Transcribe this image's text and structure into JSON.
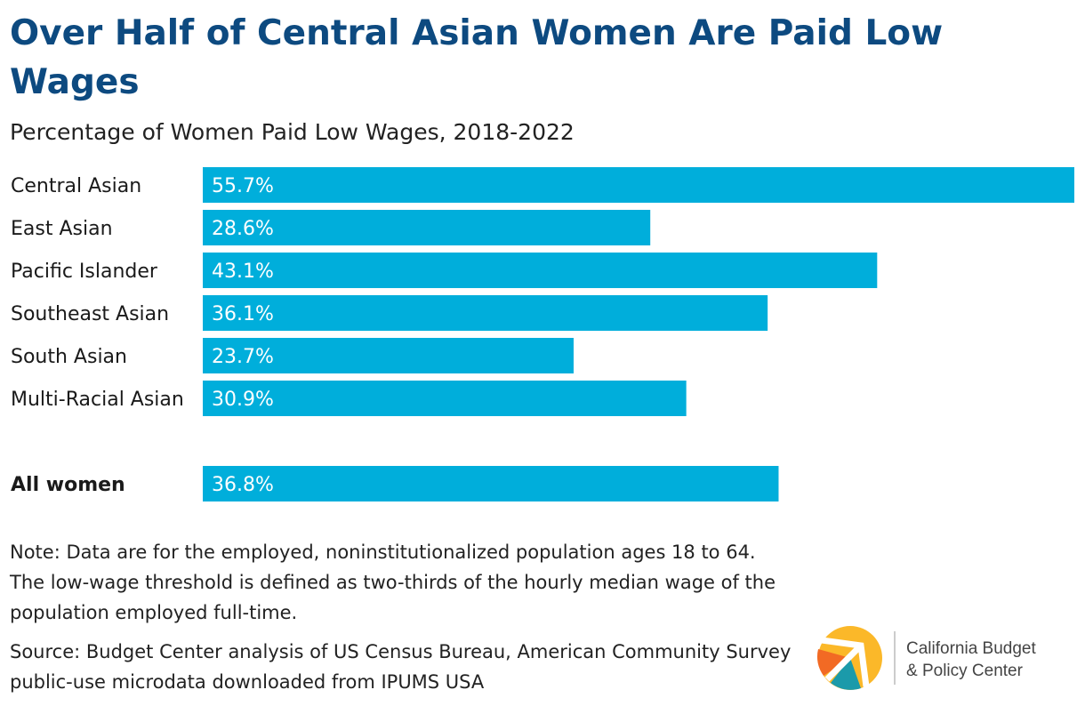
{
  "title": "Over Half of Central Asian Women Are Paid Low Wages",
  "subtitle": "Percentage of Women Paid Low Wages, 2018-2022",
  "chart_data": {
    "type": "bar",
    "orientation": "horizontal",
    "title": "Over Half of Central Asian Women Are Paid Low Wages",
    "subtitle": "Percentage of Women Paid Low Wages, 2018-2022",
    "categories": [
      "Central Asian",
      "East Asian",
      "Pacific Islander",
      "Southeast Asian",
      "South Asian",
      "Multi-Racial Asian",
      "All women"
    ],
    "values": [
      55.7,
      28.6,
      43.1,
      36.1,
      23.7,
      30.9,
      36.8
    ],
    "labels": [
      "55.7%",
      "28.6%",
      "43.1%",
      "36.1%",
      "23.7%",
      "30.9%",
      "36.8%"
    ],
    "bold_categories": [
      "All women"
    ],
    "xlim": [
      0,
      55.7
    ],
    "grid": false,
    "bar_color": "#00aedb"
  },
  "note": "Note: Data are for the employed, noninstitutionalized population ages 18 to 64. The low-wage threshold is defined as two-thirds of the hourly median wage of the population employed full-time.",
  "source": "Source: Budget Center analysis of US Census Bureau, American Community Survey public-use microdata downloaded from IPUMS USA",
  "logo": {
    "line1": "California Budget",
    "line2": "& Policy Center"
  }
}
